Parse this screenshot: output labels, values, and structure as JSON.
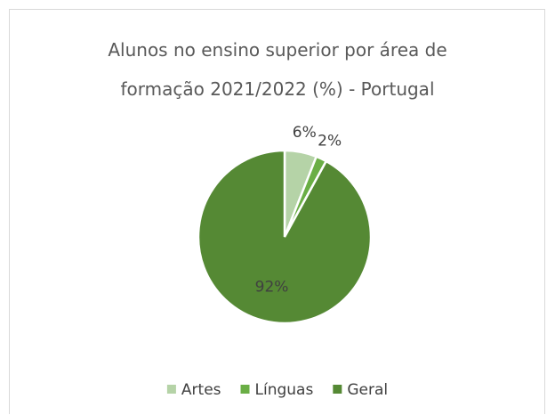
{
  "chart_data": {
    "type": "pie",
    "title": "Alunos no ensino superior por área de formação 2021/2022 (%) - Portugal",
    "categories": [
      "Artes",
      "Línguas",
      "Geral"
    ],
    "values": [
      6,
      2,
      92
    ],
    "value_labels": [
      "6%",
      "2%",
      "92%"
    ],
    "colors": [
      "#b5d3a7",
      "#6aae45",
      "#558934"
    ],
    "legend": "bottom"
  }
}
